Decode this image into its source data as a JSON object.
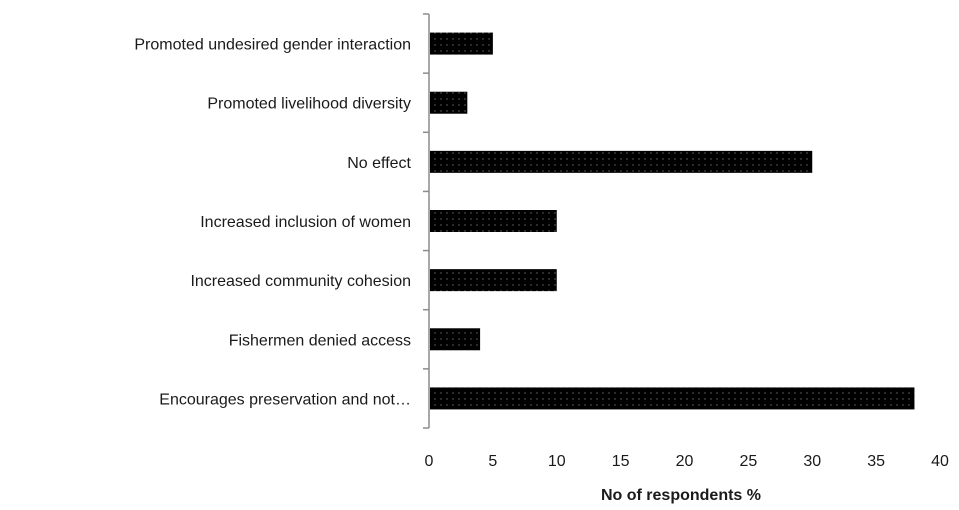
{
  "chart_data": {
    "type": "bar",
    "orientation": "horizontal",
    "categories": [
      "Promoted undesired gender interaction",
      "Promoted livelihood diversity",
      "No effect",
      "Increased inclusion of women",
      "Increased community cohesion",
      "Fishermen denied access",
      "Encourages preservation and not…"
    ],
    "values": [
      5,
      3,
      30,
      10,
      10,
      4,
      38
    ],
    "xlabel": "No of respondents %",
    "ylabel": "",
    "xlim": [
      0,
      40
    ],
    "xticks": [
      "0",
      "5",
      "10",
      "15",
      "20",
      "25",
      "30",
      "35",
      "40"
    ],
    "grid": false,
    "bar_color": "#000000",
    "bar_pattern": "dotted"
  }
}
